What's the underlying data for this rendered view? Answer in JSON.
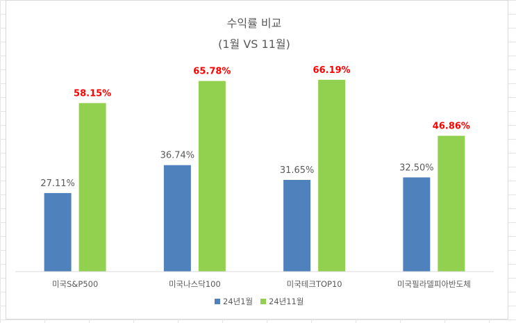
{
  "chart_data": {
    "type": "bar",
    "title": "수익률 비교",
    "subtitle": "(1월 VS 11월)",
    "categories": [
      "미국S&P500",
      "미국나스닥100",
      "미국테크TOP10",
      "미국필라델피아반도체"
    ],
    "series": [
      {
        "name": "24년1월",
        "values": [
          27.11,
          36.74,
          31.65,
          32.5
        ],
        "labels": [
          "27.11%",
          "36.74%",
          "31.65%",
          "32.50%"
        ],
        "color": "#4f81bd",
        "label_color": "#595959"
      },
      {
        "name": "24년11월",
        "values": [
          58.15,
          65.78,
          66.19,
          46.86
        ],
        "labels": [
          "58.15%",
          "65.78%",
          "66.19%",
          "46.86%"
        ],
        "color": "#92d050",
        "label_color": "#ff0000"
      }
    ],
    "ylim": [
      0,
      70
    ],
    "grid": false,
    "legend_position": "bottom"
  }
}
